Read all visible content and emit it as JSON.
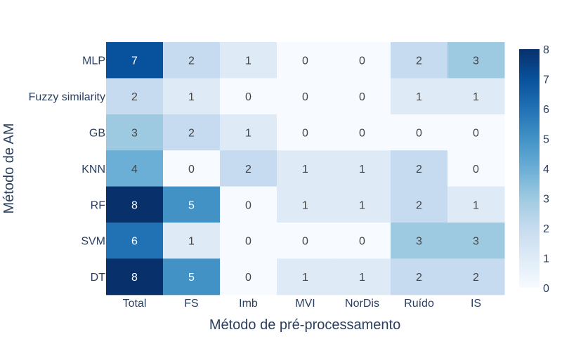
{
  "chart_data": {
    "type": "heatmap",
    "xlabel": "Método de pré-processamento",
    "ylabel": "Método de AM",
    "x_categories": [
      "Total",
      "FS",
      "Imb",
      "MVI",
      "NorDis",
      "Ruído",
      "IS"
    ],
    "y_categories": [
      "MLP",
      "Fuzzy similarity",
      "GB",
      "KNN",
      "RF",
      "SVM",
      "DT"
    ],
    "values": [
      [
        7,
        2,
        1,
        0,
        0,
        2,
        3
      ],
      [
        2,
        1,
        0,
        0,
        0,
        1,
        1
      ],
      [
        3,
        2,
        1,
        0,
        0,
        0,
        0
      ],
      [
        4,
        0,
        2,
        1,
        1,
        2,
        0
      ],
      [
        8,
        5,
        0,
        1,
        1,
        2,
        1
      ],
      [
        6,
        1,
        0,
        0,
        0,
        3,
        3
      ],
      [
        8,
        5,
        0,
        1,
        1,
        2,
        2
      ]
    ],
    "zrange": [
      0,
      8
    ],
    "colorscale": "Blues",
    "colorbar_ticks": [
      "0",
      "1",
      "2",
      "3",
      "4",
      "5",
      "6",
      "7",
      "8"
    ]
  }
}
